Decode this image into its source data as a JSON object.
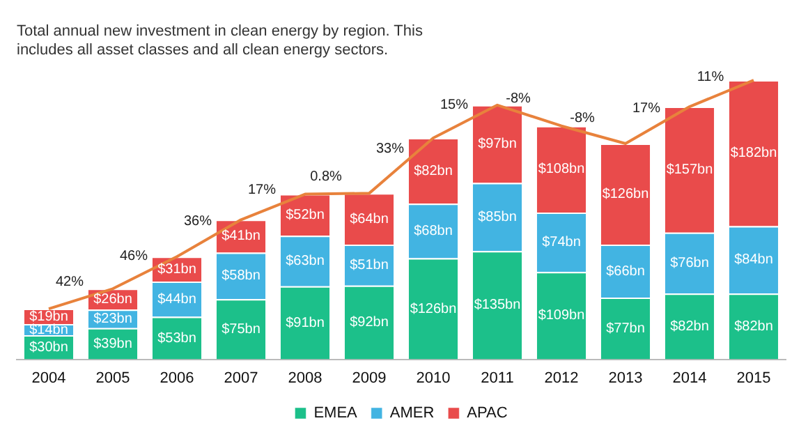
{
  "chart_data": {
    "type": "bar",
    "title": "Total annual new investment in clean energy by region. This\nincludes all asset classes and all clean energy sectors.",
    "categories": [
      "2004",
      "2005",
      "2006",
      "2007",
      "2008",
      "2009",
      "2010",
      "2011",
      "2012",
      "2013",
      "2014",
      "2015"
    ],
    "stacked": true,
    "legend": "bottom",
    "grid": false,
    "series": [
      {
        "name": "EMEA",
        "color": "#1cc08a",
        "values": [
          30,
          39,
          53,
          75,
          91,
          92,
          126,
          135,
          109,
          77,
          82,
          82
        ],
        "value_labels": [
          "$30bn",
          "$39bn",
          "$53bn",
          "$75bn",
          "$91bn",
          "$92bn",
          "$126bn",
          "$135bn",
          "$109bn",
          "$77bn",
          "$82bn",
          "$82bn"
        ]
      },
      {
        "name": "AMER",
        "color": "#42b4e2",
        "values": [
          14,
          23,
          44,
          58,
          63,
          51,
          68,
          85,
          74,
          66,
          76,
          84
        ],
        "value_labels": [
          "$14bn",
          "$23bn",
          "$44bn",
          "$58bn",
          "$63bn",
          "$51bn",
          "$68bn",
          "$85bn",
          "$74bn",
          "$66bn",
          "$76bn",
          "$84bn"
        ]
      },
      {
        "name": "APAC",
        "color": "#e94b4b",
        "values": [
          19,
          26,
          31,
          41,
          52,
          64,
          82,
          97,
          108,
          126,
          157,
          182
        ],
        "value_labels": [
          "$19bn",
          "$26bn",
          "$31bn",
          "$41bn",
          "$52bn",
          "$64bn",
          "$82bn",
          "$97bn",
          "$108bn",
          "$126bn",
          "$157bn",
          "$182bn"
        ]
      },
      {
        "type": "line",
        "color": "#e8823c",
        "values": [
          63,
          88,
          128,
          174,
          206,
          207,
          276,
          317,
          291,
          269,
          315,
          348
        ]
      }
    ],
    "annotations": [
      {
        "text": "42%",
        "x": "2005",
        "y": 88
      },
      {
        "text": "46%",
        "x": "2006",
        "y": 128
      },
      {
        "text": "36%",
        "x": "2007",
        "y": 174
      },
      {
        "text": "17%",
        "x": "2008",
        "y": 206
      },
      {
        "text": "0.8%",
        "x": "2009",
        "y": 207
      },
      {
        "text": "33%",
        "x": "2010",
        "y": 276
      },
      {
        "text": "15%",
        "x": "2011",
        "y": 317
      },
      {
        "text": "-8%",
        "x": "2012",
        "y": 291
      },
      {
        "text": "-8%",
        "x": "2013",
        "y": 269
      },
      {
        "text": "17%",
        "x": "2014",
        "y": 315
      },
      {
        "text": "11%",
        "x": "2015",
        "y": 348
      }
    ]
  }
}
